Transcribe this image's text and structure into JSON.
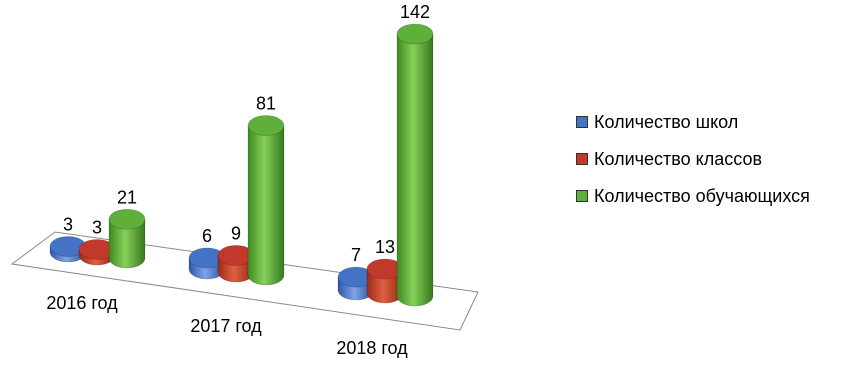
{
  "chart_data": {
    "type": "bar",
    "categories": [
      "2016 год",
      "2017 год",
      "2018 год"
    ],
    "series": [
      {
        "name": "Количество школ",
        "values": [
          3,
          6,
          7
        ],
        "color": "#4472c4"
      },
      {
        "name": "Количество классов",
        "values": [
          3,
          9,
          13
        ],
        "color": "#c0392b"
      },
      {
        "name": "Количество обучающихся",
        "values": [
          21,
          81,
          142
        ],
        "color": "#5fb03a"
      }
    ],
    "title": "",
    "xlabel": "",
    "ylabel": "",
    "ylim": [
      0,
      142
    ],
    "grid": false,
    "legend_position": "right",
    "style": "3d-cylinder"
  }
}
